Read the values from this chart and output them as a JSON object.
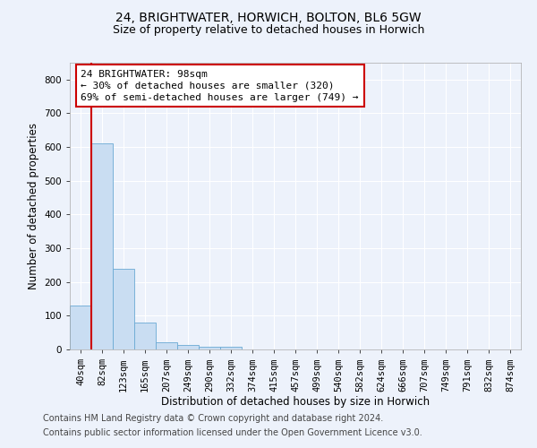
{
  "title": "24, BRIGHTWATER, HORWICH, BOLTON, BL6 5GW",
  "subtitle": "Size of property relative to detached houses in Horwich",
  "xlabel": "Distribution of detached houses by size in Horwich",
  "ylabel": "Number of detached properties",
  "bar_labels": [
    "40sqm",
    "82sqm",
    "123sqm",
    "165sqm",
    "207sqm",
    "249sqm",
    "290sqm",
    "332sqm",
    "374sqm",
    "415sqm",
    "457sqm",
    "499sqm",
    "540sqm",
    "582sqm",
    "624sqm",
    "666sqm",
    "707sqm",
    "749sqm",
    "791sqm",
    "832sqm",
    "874sqm"
  ],
  "bar_values": [
    130,
    610,
    240,
    80,
    20,
    12,
    8,
    8,
    0,
    0,
    0,
    0,
    0,
    0,
    0,
    0,
    0,
    0,
    0,
    0,
    0
  ],
  "bar_color": "#c9ddf2",
  "bar_edge_color": "#6aaad4",
  "annotation_text": "24 BRIGHTWATER: 98sqm\n← 30% of detached houses are smaller (320)\n69% of semi-detached houses are larger (749) →",
  "vline_color": "#cc0000",
  "box_color": "#cc0000",
  "ylim": [
    0,
    850
  ],
  "yticks": [
    0,
    100,
    200,
    300,
    400,
    500,
    600,
    700,
    800
  ],
  "footer1": "Contains HM Land Registry data © Crown copyright and database right 2024.",
  "footer2": "Contains public sector information licensed under the Open Government Licence v3.0.",
  "background_color": "#edf2fb",
  "plot_bg_color": "#edf2fb",
  "grid_color": "#ffffff",
  "title_fontsize": 10,
  "subtitle_fontsize": 9,
  "axis_label_fontsize": 8.5,
  "tick_fontsize": 7.5,
  "annotation_fontsize": 8,
  "footer_fontsize": 7
}
